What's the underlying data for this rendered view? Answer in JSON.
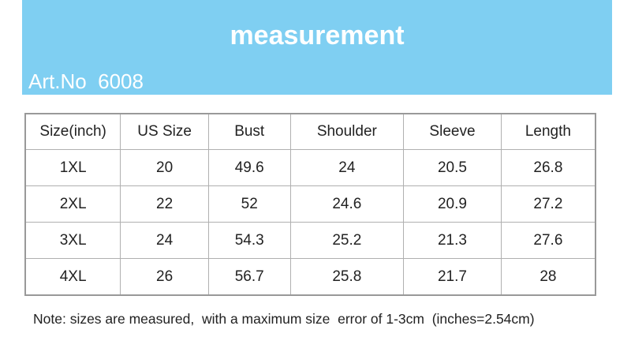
{
  "banner": {
    "title": "measurement",
    "art_no": "Art.No  6008",
    "color": "#7fcff2"
  },
  "table": {
    "headers": [
      "Size(inch)",
      "US Size",
      "Bust",
      "Shoulder",
      "Sleeve",
      "Length"
    ],
    "rows": [
      [
        "1XL",
        "20",
        "49.6",
        "24",
        "20.5",
        "26.8"
      ],
      [
        "2XL",
        "22",
        "52",
        "24.6",
        "20.9",
        "27.2"
      ],
      [
        "3XL",
        "24",
        "54.3",
        "25.2",
        "21.3",
        "27.6"
      ],
      [
        "4XL",
        "26",
        "56.7",
        "25.8",
        "21.7",
        "28"
      ]
    ]
  },
  "note": "Note: sizes are measured,  with a maximum size  error of 1-3cm  (inches=2.54cm)"
}
